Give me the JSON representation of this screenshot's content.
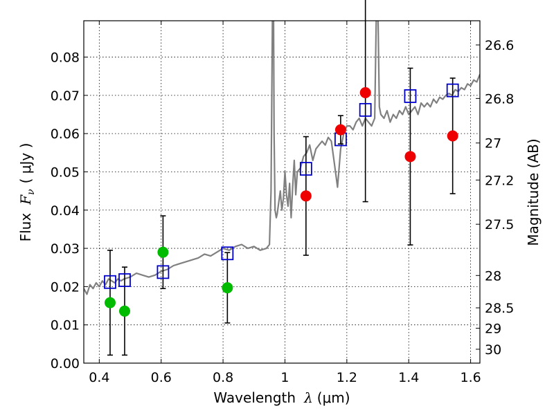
{
  "chart_data": {
    "type": "scatter",
    "xlabel_prefix": "Wavelength",
    "xlabel_symbol": "λ",
    "xlabel_unit": "(μm)",
    "ylabel_prefix": "Flux",
    "ylabel_symbol": "F",
    "ylabel_subscript": "ν",
    "ylabel_unit": "( μJy )",
    "y2label": "Magnitude (AB)",
    "xlim": [
      0.35,
      1.63
    ],
    "ylim": [
      0.0,
      0.0895
    ],
    "grid": true,
    "x_ticks": [
      0.4,
      0.6,
      0.8,
      1.0,
      1.2,
      1.4,
      1.6
    ],
    "x_tick_labels": [
      "0.4",
      "0.6",
      "0.8",
      "1",
      "1.2",
      "1.4",
      "1.6"
    ],
    "y_ticks": [
      0.0,
      0.01,
      0.02,
      0.03,
      0.04,
      0.05,
      0.06,
      0.07,
      0.08
    ],
    "y_tick_labels": [
      "0.00",
      "0.01",
      "0.02",
      "0.03",
      "0.04",
      "0.05",
      "0.06",
      "0.07",
      "0.08"
    ],
    "mag_ticks": [
      26.6,
      26.8,
      27,
      27.2,
      27.5,
      28,
      28.5,
      29,
      30
    ],
    "mag_tick_labels": [
      "26.6",
      "26.8",
      "27",
      "27.2",
      "27.5",
      "28",
      "28.5",
      "29",
      "30"
    ],
    "series": [
      {
        "name": "model-spectrum",
        "kind": "line",
        "color": "#808080",
        "x": [
          0.35,
          0.36,
          0.37,
          0.38,
          0.39,
          0.4,
          0.41,
          0.42,
          0.43,
          0.44,
          0.45,
          0.46,
          0.47,
          0.48,
          0.5,
          0.52,
          0.54,
          0.56,
          0.58,
          0.6,
          0.62,
          0.64,
          0.66,
          0.68,
          0.7,
          0.72,
          0.74,
          0.76,
          0.78,
          0.8,
          0.82,
          0.84,
          0.86,
          0.88,
          0.9,
          0.92,
          0.94,
          0.95,
          0.955,
          0.96,
          0.963,
          0.965,
          0.968,
          0.972,
          0.975,
          0.98,
          0.985,
          0.99,
          0.995,
          1.0,
          1.005,
          1.01,
          1.015,
          1.02,
          1.025,
          1.03,
          1.035,
          1.04,
          1.05,
          1.06,
          1.07,
          1.08,
          1.09,
          1.1,
          1.11,
          1.12,
          1.13,
          1.14,
          1.15,
          1.16,
          1.17,
          1.18,
          1.19,
          1.2,
          1.21,
          1.22,
          1.23,
          1.24,
          1.25,
          1.26,
          1.27,
          1.28,
          1.29,
          1.295,
          1.3,
          1.305,
          1.31,
          1.32,
          1.33,
          1.34,
          1.35,
          1.36,
          1.37,
          1.38,
          1.39,
          1.4,
          1.41,
          1.42,
          1.43,
          1.44,
          1.45,
          1.46,
          1.47,
          1.48,
          1.49,
          1.5,
          1.51,
          1.52,
          1.53,
          1.54,
          1.55,
          1.56,
          1.57,
          1.58,
          1.59,
          1.6,
          1.61,
          1.62,
          1.63
        ],
        "y": [
          0.0195,
          0.018,
          0.0205,
          0.0195,
          0.021,
          0.02,
          0.0215,
          0.0205,
          0.022,
          0.0215,
          0.021,
          0.022,
          0.0215,
          0.022,
          0.0225,
          0.0235,
          0.023,
          0.0225,
          0.023,
          0.024,
          0.0245,
          0.0255,
          0.026,
          0.0265,
          0.027,
          0.0275,
          0.0285,
          0.028,
          0.029,
          0.03,
          0.0295,
          0.0305,
          0.031,
          0.03,
          0.0305,
          0.0295,
          0.03,
          0.031,
          0.045,
          0.095,
          0.095,
          0.06,
          0.04,
          0.038,
          0.039,
          0.042,
          0.045,
          0.04,
          0.043,
          0.05,
          0.044,
          0.041,
          0.047,
          0.038,
          0.046,
          0.053,
          0.044,
          0.05,
          0.051,
          0.054,
          0.055,
          0.057,
          0.053,
          0.056,
          0.057,
          0.058,
          0.057,
          0.059,
          0.058,
          0.052,
          0.046,
          0.056,
          0.06,
          0.062,
          0.062,
          0.061,
          0.063,
          0.064,
          0.062,
          0.064,
          0.063,
          0.062,
          0.064,
          0.09,
          0.095,
          0.067,
          0.065,
          0.064,
          0.066,
          0.063,
          0.065,
          0.064,
          0.066,
          0.065,
          0.067,
          0.065,
          0.066,
          0.067,
          0.065,
          0.068,
          0.067,
          0.068,
          0.067,
          0.069,
          0.068,
          0.0695,
          0.069,
          0.07,
          0.0705,
          0.07,
          0.0715,
          0.071,
          0.072,
          0.0715,
          0.073,
          0.0725,
          0.074,
          0.0735,
          0.0755
        ]
      },
      {
        "name": "model-photometry",
        "kind": "open-square",
        "color": "#0000cc",
        "x": [
          0.435,
          0.482,
          0.606,
          0.814,
          1.068,
          1.18,
          1.26,
          1.405,
          1.542
        ],
        "y": [
          0.0212,
          0.0217,
          0.0238,
          0.0287,
          0.0508,
          0.0585,
          0.0662,
          0.0698,
          0.0713
        ]
      },
      {
        "name": "observed-green",
        "kind": "filled-circle",
        "color": "#00bb00",
        "x": [
          0.435,
          0.482,
          0.606,
          0.814
        ],
        "y": [
          0.0158,
          0.0136,
          0.029,
          0.0197
        ],
        "err": [
          0.0137,
          0.0115,
          0.0095,
          0.0092
        ]
      },
      {
        "name": "observed-red",
        "kind": "filled-circle",
        "color": "#ee0000",
        "x": [
          1.068,
          1.18,
          1.26,
          1.405,
          1.542
        ],
        "y": [
          0.0437,
          0.061,
          0.0707,
          0.054,
          0.0594
        ],
        "err": [
          0.0155,
          0.0037,
          0.0285,
          0.0231,
          0.0151
        ]
      }
    ]
  }
}
